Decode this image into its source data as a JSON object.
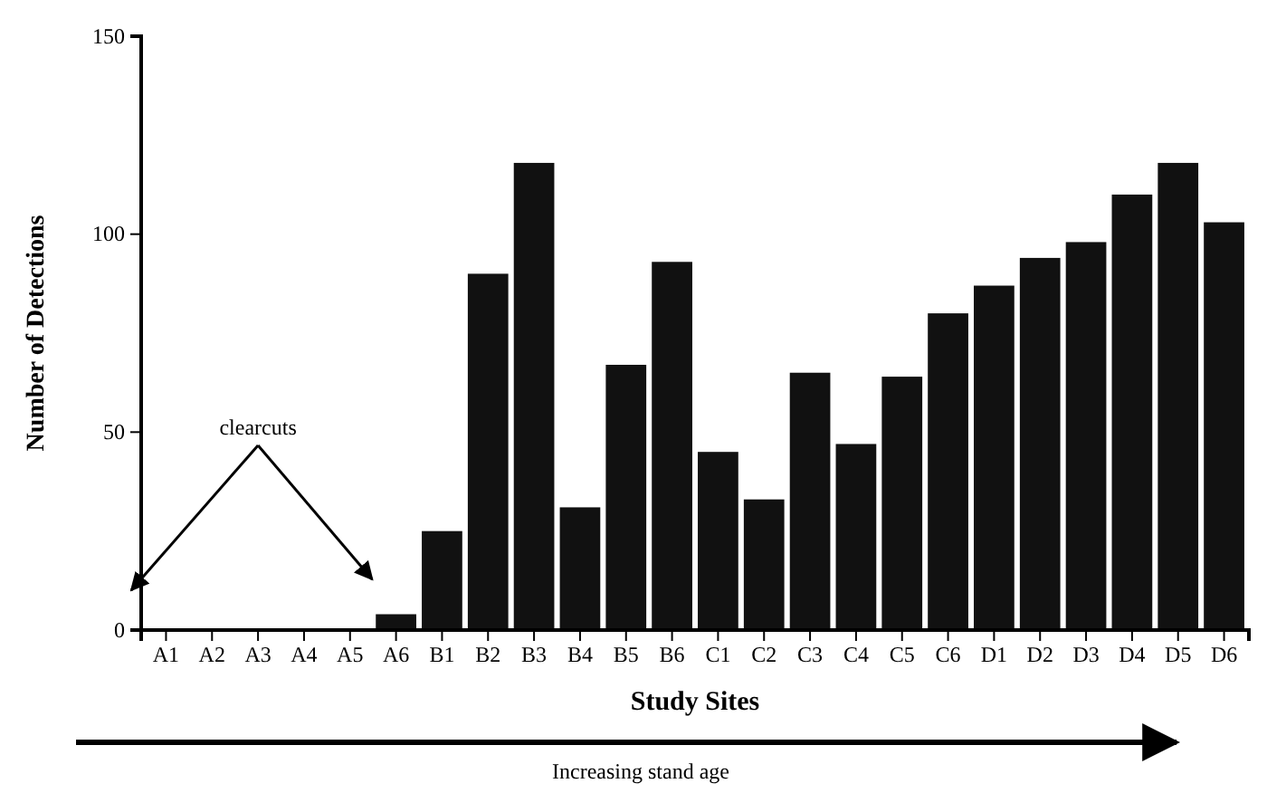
{
  "chart_data": {
    "type": "bar",
    "categories": [
      "A1",
      "A2",
      "A3",
      "A4",
      "A5",
      "A6",
      "B1",
      "B2",
      "B3",
      "B4",
      "B5",
      "B6",
      "C1",
      "C2",
      "C3",
      "C4",
      "C5",
      "C6",
      "D1",
      "D2",
      "D3",
      "D4",
      "D5",
      "D6"
    ],
    "values": [
      0,
      0,
      0,
      0,
      0,
      4,
      25,
      90,
      118,
      31,
      67,
      93,
      45,
      33,
      65,
      47,
      64,
      80,
      87,
      94,
      98,
      110,
      118,
      103
    ],
    "color": "#111111",
    "xlabel": "Study Sites",
    "ylabel": "Number of Detections",
    "ylim": [
      0,
      150
    ],
    "yticks": [
      0,
      50,
      100,
      150
    ],
    "grid": false,
    "annotations": [
      "clearcuts",
      "Increasing stand age"
    ]
  }
}
